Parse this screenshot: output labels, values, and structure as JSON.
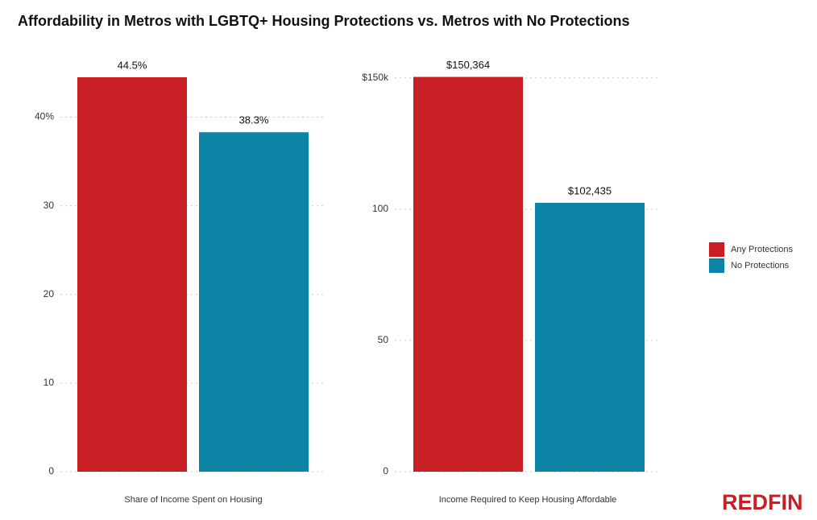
{
  "title": "Affordability in Metros with LGBTQ+ Housing Protections vs. Metros with No Protections",
  "brand": "REDFIN",
  "legend": [
    {
      "name": "Any Protections",
      "color": "#c81f25"
    },
    {
      "name": "No Protections",
      "color": "#0b84a5"
    }
  ],
  "chart_data": [
    {
      "type": "bar",
      "categories": [
        "Share of Income Spent on Housing"
      ],
      "series": [
        {
          "color": "#c81f25",
          "values": [
            44.5
          ],
          "value_labels": [
            "44.5%"
          ]
        },
        {
          "color": "#0b84a5",
          "values": [
            38.3
          ],
          "value_labels": [
            "38.3%"
          ]
        }
      ],
      "ylim": [
        0,
        45.5
      ],
      "yticks": [
        0,
        10,
        20,
        30,
        {
          "value": 40,
          "label": "40%"
        }
      ],
      "grid": true
    },
    {
      "type": "bar",
      "categories": [
        "Income Required to Keep Housing Affordable"
      ],
      "series": [
        {
          "color": "#c81f25",
          "values": [
            150.364
          ],
          "value_labels": [
            "$150,364"
          ]
        },
        {
          "color": "#0b84a5",
          "values": [
            102.435
          ],
          "value_labels": [
            "$102,435"
          ]
        }
      ],
      "ylim": [
        0,
        153.6
      ],
      "yticks": [
        0,
        50,
        100,
        {
          "value": 150,
          "label": "$150k"
        }
      ],
      "grid": true
    }
  ]
}
